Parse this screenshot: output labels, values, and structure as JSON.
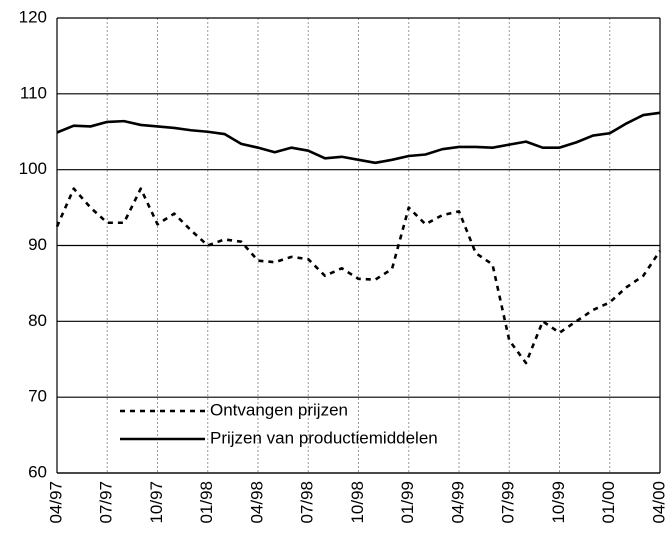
{
  "chart_data": {
    "type": "line",
    "categories": [
      "04/97",
      null,
      null,
      "07/97",
      null,
      null,
      "10/97",
      null,
      null,
      "01/98",
      null,
      null,
      "04/98",
      null,
      null,
      "07/98",
      null,
      null,
      "10/98",
      null,
      null,
      "01/99",
      null,
      null,
      "04/99",
      null,
      null,
      "07/99",
      null,
      null,
      "10/99",
      null,
      null,
      "01/00",
      null,
      null,
      "04/00"
    ],
    "series": [
      {
        "name": "Ontvangen prijzen",
        "color": "#000000",
        "line_style": "dotted",
        "values": [
          92.5,
          97.5,
          95.0,
          93.0,
          93.0,
          97.5,
          92.8,
          94.2,
          92.0,
          90.0,
          90.8,
          90.5,
          88.0,
          87.8,
          88.5,
          88.2,
          86.0,
          87.0,
          85.6,
          85.5,
          86.9,
          95.0,
          92.8,
          94.0,
          94.5,
          89.0,
          87.5,
          77.5,
          74.5,
          80.0,
          78.5,
          80.0,
          81.5,
          82.5,
          84.5,
          86.0,
          89.3
        ]
      },
      {
        "name": "Prijzen van productiemiddelen",
        "color": "#000000",
        "line_style": "solid",
        "values": [
          104.9,
          105.8,
          105.7,
          106.3,
          106.4,
          105.9,
          105.7,
          105.5,
          105.2,
          105.0,
          104.7,
          103.4,
          102.9,
          102.3,
          102.9,
          102.5,
          101.5,
          101.7,
          101.3,
          100.9,
          101.3,
          101.8,
          102.0,
          102.7,
          103.0,
          103.0,
          102.9,
          103.3,
          103.7,
          102.9,
          102.9,
          103.6,
          104.5,
          104.8,
          106.1,
          107.2,
          107.5
        ]
      }
    ],
    "ylim": [
      60,
      120
    ],
    "yticks": [
      60,
      70,
      80,
      90,
      100,
      110,
      120
    ],
    "grid": true,
    "legend": "lower left"
  }
}
